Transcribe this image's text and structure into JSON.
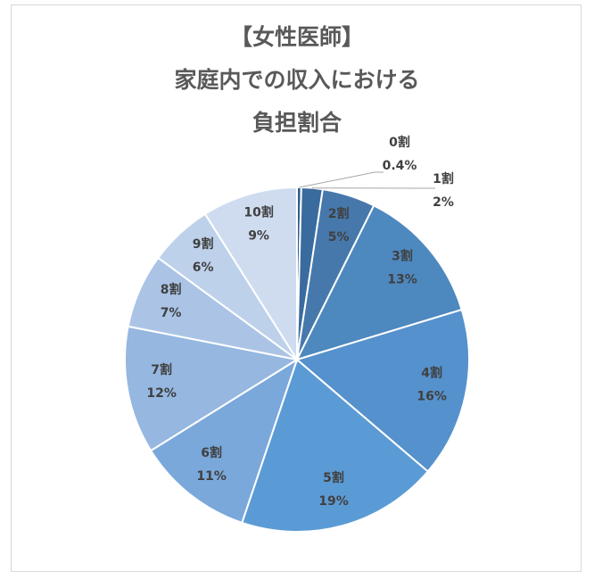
{
  "chart_data": {
    "type": "pie",
    "title": [
      "【女性医師】",
      "家庭内での収入における",
      "負担割合"
    ],
    "categories": [
      "0割",
      "1割",
      "2割",
      "3割",
      "4割",
      "5割",
      "6割",
      "7割",
      "8割",
      "9割",
      "10割"
    ],
    "values": [
      0.4,
      2,
      5,
      13,
      16,
      19,
      11,
      12,
      7,
      6,
      9
    ],
    "value_labels": [
      "0.4%",
      "2%",
      "5%",
      "13%",
      "16%",
      "19%",
      "11%",
      "12%",
      "7%",
      "6%",
      "9%"
    ],
    "colors": [
      "#2f5d8a",
      "#3a6b9e",
      "#4678ab",
      "#4d88bf",
      "#5591cc",
      "#5b9bd5",
      "#7aa8da",
      "#95b7e0",
      "#abc4e6",
      "#bed1eb",
      "#cfdcf0"
    ],
    "start_angle": "12 o'clock, clockwise",
    "legend": "none"
  }
}
